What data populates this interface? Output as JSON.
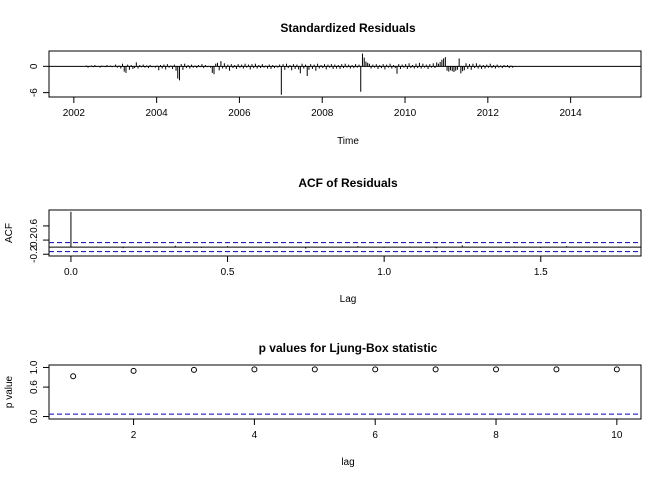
{
  "chart_data": [
    {
      "type": "bar",
      "title": "Standardized Residuals",
      "xlabel": "Time",
      "ylabel": "",
      "xlim": [
        2001.4,
        2015.7
      ],
      "ylim": [
        -7,
        3.5
      ],
      "x_ticks": [
        2002,
        2004,
        2006,
        2008,
        2010,
        2012,
        2014
      ],
      "y_ticks": [
        -6,
        0
      ],
      "baseline": 0,
      "series": [
        {
          "x_start": 2002.3,
          "x_step": 0.0417,
          "values": [
            0.2,
            -0.3,
            0.1,
            0.2,
            -0.2,
            0.3,
            -0.1,
            0.1,
            -0.3,
            0.2,
            0.1,
            -0.2,
            0.3,
            -0.1,
            0.2,
            -0.2,
            0.1,
            0.4,
            -0.3,
            0.2,
            -0.5,
            0.6,
            -1.2,
            -1.5,
            0.4,
            -0.8,
            0.3,
            -0.6,
            -0.4,
            0.9,
            -0.5,
            0.3,
            -0.2,
            0.4,
            -0.3,
            0.2,
            -0.4,
            0.3,
            -0.2,
            0.1,
            -0.3,
            0.2,
            -0.9,
            0.3,
            -0.5,
            0.4,
            -0.7,
            0.5,
            -0.3,
            0.2,
            -0.6,
            0.4,
            -1.0,
            -2.8,
            -3.2,
            0.5,
            -0.8,
            0.6,
            -0.4,
            0.3,
            -0.5,
            0.4,
            -0.3,
            0.2,
            -0.4,
            0.3,
            -0.2,
            0.5,
            -0.4,
            0.3,
            -0.2,
            0.1,
            -0.3,
            -1.5,
            -1.8,
            0.6,
            0.8,
            -0.9,
            1.2,
            -0.5,
            0.7,
            -0.6,
            0.4,
            -1.0,
            0.5,
            -0.4,
            0.3,
            -0.6,
            0.5,
            -0.3,
            0.4,
            -0.5,
            0.6,
            -0.3,
            0.4,
            -0.7,
            0.5,
            -0.4,
            0.6,
            -0.5,
            0.3,
            -0.4,
            0.5,
            -0.3,
            0.2,
            -0.5,
            0.4,
            -0.6,
            0.3,
            -0.4,
            0.2,
            -0.3,
            0.4,
            -6.5,
            0.5,
            -0.8,
            0.6,
            -0.4,
            0.3,
            -0.9,
            0.5,
            -0.6,
            0.4,
            -0.7,
            -1.6,
            0.6,
            -0.5,
            0.4,
            -2.2,
            -0.8,
            0.5,
            -0.6,
            0.4,
            -1.0,
            0.6,
            -0.5,
            0.3,
            -0.4,
            0.5,
            -0.7,
            0.4,
            -0.3,
            0.5,
            -0.6,
            0.4,
            -0.5,
            0.3,
            -0.6,
            0.5,
            -0.4,
            0.6,
            -0.3,
            0.4,
            -0.5,
            0.3,
            -0.4,
            0.5,
            -0.3,
            0.4,
            -5.8,
            2.9,
            2.0,
            1.1,
            0.8,
            0.6,
            -0.5,
            0.4,
            -0.3,
            0.5,
            -0.6,
            0.3,
            -0.4,
            0.5,
            -0.7,
            0.4,
            -0.3,
            0.6,
            -0.5,
            0.3,
            -0.4,
            -1.7,
            0.5,
            -0.6,
            0.4,
            -0.3,
            0.5,
            -0.6,
            0.7,
            -0.4,
            0.3,
            -0.5,
            0.6,
            -0.4,
            0.8,
            -0.5,
            0.6,
            -0.3,
            0.4,
            -0.6,
            0.5,
            -0.3,
            0.7,
            -0.4,
            0.9,
            0.6,
            1.0,
            1.5,
            1.8,
            2.1,
            -1.0,
            -1.2,
            -0.9,
            -1.1,
            -1.3,
            -1.0,
            -0.8,
            1.8,
            -1.6,
            -1.1,
            -0.9,
            0.7,
            -0.6,
            0.5,
            -0.8,
            0.6,
            -0.4,
            0.7,
            -0.5,
            0.4,
            -0.6,
            0.3,
            -0.5,
            0.4,
            -0.3,
            0.6,
            -0.4,
            0.3,
            -0.5,
            0.4,
            -0.3,
            0.2,
            -0.4,
            0.3,
            -0.2,
            0.3,
            -0.4,
            0.2,
            -0.3
          ]
        }
      ]
    },
    {
      "type": "bar",
      "title": "ACF of Residuals",
      "xlabel": "Lag",
      "ylabel": "ACF",
      "xlim": [
        -0.07,
        1.82
      ],
      "ylim": [
        -0.25,
        1.05
      ],
      "x_ticks": [
        "0.0",
        "0.5",
        "1.0",
        "1.5"
      ],
      "y_ticks": [
        "-0.2",
        "0.2",
        "0.6"
      ],
      "baseline": 0,
      "conf_limits": [
        0.128,
        -0.128
      ],
      "series": [
        {
          "x_start": 0.0,
          "x_step": 0.0833,
          "values": [
            1.0,
            0.02,
            -0.03,
            0.01,
            0.04,
            -0.02,
            0.03,
            -0.01,
            0.02,
            -0.04,
            0.01,
            0.03,
            -0.02,
            0.02,
            -0.03,
            0.05,
            -0.01,
            0.02,
            -0.02,
            0.03,
            -0.01,
            0.02
          ]
        }
      ]
    },
    {
      "type": "scatter",
      "title": "p values for Ljung-Box statistic",
      "xlabel": "lag",
      "ylabel": "p value",
      "xlim": [
        0.6,
        10.4
      ],
      "ylim": [
        -0.05,
        1.05
      ],
      "x_ticks": [
        "2",
        "4",
        "6",
        "8",
        "10"
      ],
      "y_ticks": [
        "0.0",
        "0.6",
        "1.0"
      ],
      "reference_line": 0.05,
      "series": [
        {
          "x": [
            1,
            2,
            3,
            4,
            5,
            6,
            7,
            8,
            9,
            10
          ],
          "y": [
            0.82,
            0.93,
            0.95,
            0.96,
            0.96,
            0.96,
            0.96,
            0.96,
            0.96,
            0.96
          ]
        }
      ]
    }
  ]
}
